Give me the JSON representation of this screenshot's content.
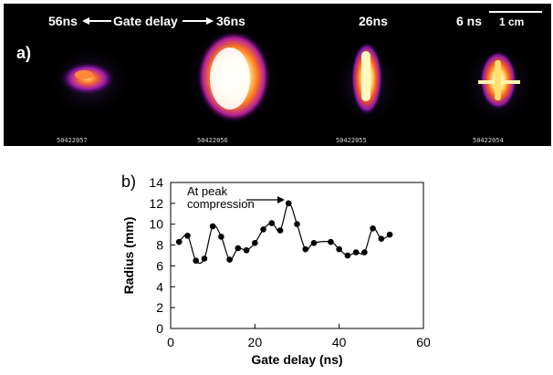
{
  "panel_a": {
    "label": "a)",
    "header": {
      "left_time": "56ns",
      "gate_delay_label": "Gate delay",
      "mid_time": "36ns",
      "t3": "26ns",
      "t4": "6 ns"
    },
    "scale_bar_label": "1 cm",
    "frame_ids": [
      "50422057",
      "50422056",
      "50422055",
      "50422054"
    ]
  },
  "panel_b": {
    "label": "b)"
  },
  "chart_data": {
    "type": "line",
    "xlabel": "Gate delay (ns)",
    "ylabel": "Radius (mm)",
    "xlim": [
      0,
      60
    ],
    "ylim": [
      0,
      14
    ],
    "xticks": [
      0,
      20,
      40,
      60
    ],
    "yticks": [
      0,
      2,
      4,
      6,
      8,
      10,
      12,
      14
    ],
    "grid": false,
    "annotation": "At peak\ncompression",
    "series": [
      {
        "x": [
          2,
          4,
          6,
          8,
          10,
          12,
          14,
          16,
          18,
          20,
          22,
          24,
          26,
          28,
          30,
          32,
          34,
          38,
          40,
          42,
          44,
          46,
          48,
          50,
          52
        ],
        "y": [
          8.3,
          8.9,
          6.5,
          6.7,
          9.8,
          8.8,
          6.6,
          7.7,
          7.5,
          8.2,
          9.5,
          10.1,
          9.4,
          12.0,
          10.0,
          7.6,
          8.2,
          8.3,
          7.6,
          7.0,
          7.3,
          7.3,
          9.6,
          8.6,
          9.0
        ]
      }
    ]
  }
}
